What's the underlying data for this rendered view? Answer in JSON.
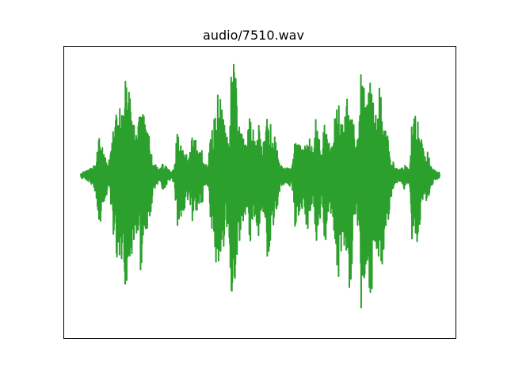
{
  "chart_data": {
    "type": "line",
    "title": "audio/7510.wav",
    "xlabel": "",
    "ylabel": "",
    "grid": false,
    "axes_ticks_visible": false,
    "legend": "none",
    "series": [
      {
        "color": "#2ca02c",
        "envelope_note_values_are_normalized_amplitude_0_to_1_in_time_order": true,
        "envelope": [
          0.02,
          0.03,
          0.04,
          0.05,
          0.08,
          0.12,
          0.35,
          0.28,
          0.18,
          0.1,
          0.2,
          0.45,
          0.55,
          0.62,
          0.5,
          0.9,
          0.7,
          0.6,
          0.35,
          0.55,
          0.72,
          0.5,
          0.38,
          0.3,
          0.1,
          0.08,
          0.04,
          0.1,
          0.08,
          0.05,
          0.03,
          0.05,
          0.4,
          0.3,
          0.25,
          0.2,
          0.15,
          0.36,
          0.3,
          0.2,
          0.24,
          0.1,
          0.08,
          0.3,
          0.45,
          0.62,
          0.8,
          0.55,
          0.35,
          0.4,
          0.9,
          1.0,
          0.5,
          0.4,
          0.3,
          0.25,
          0.55,
          0.4,
          0.3,
          0.45,
          0.25,
          0.3,
          0.6,
          0.45,
          0.35,
          0.25,
          0.1,
          0.08,
          0.05,
          0.08,
          0.06,
          0.35,
          0.3,
          0.25,
          0.2,
          0.38,
          0.3,
          0.2,
          0.5,
          0.35,
          0.2,
          0.55,
          0.3,
          0.25,
          0.4,
          0.78,
          0.6,
          0.45,
          0.55,
          0.85,
          0.6,
          0.3,
          0.4,
          0.9,
          0.72,
          0.65,
          1.0,
          0.6,
          0.5,
          0.8,
          0.58,
          0.42,
          0.3,
          0.15,
          0.08,
          0.05,
          0.05,
          0.1,
          0.08,
          0.05,
          0.55,
          0.6,
          0.4,
          0.3,
          0.15,
          0.2,
          0.1,
          0.05,
          0.03,
          0.02
        ]
      }
    ]
  }
}
